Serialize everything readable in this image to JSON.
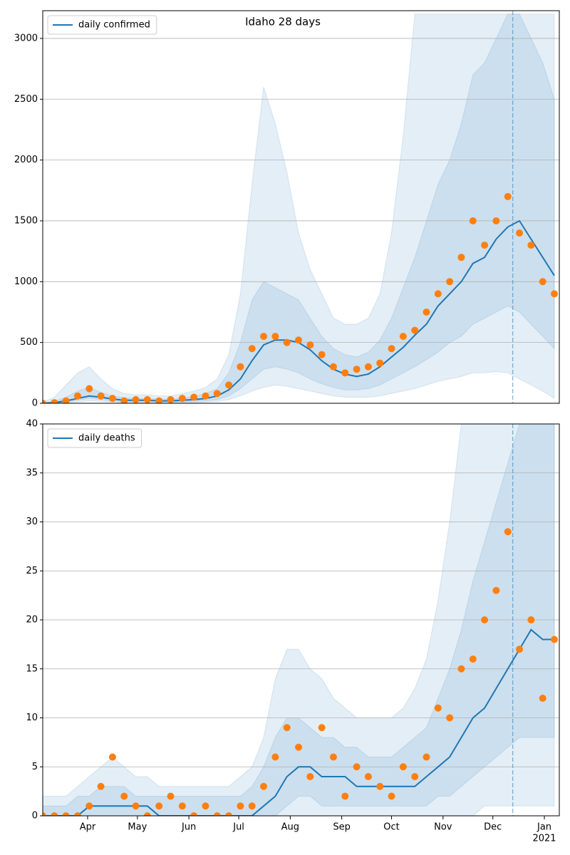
{
  "chart_data": [
    {
      "type": "line",
      "title": "Idaho 28 days",
      "x": [
        0,
        7,
        14,
        21,
        28,
        35,
        42,
        49,
        56,
        63,
        70,
        77,
        84,
        91,
        98,
        105,
        112,
        119,
        126,
        133,
        140,
        147,
        154,
        161,
        168,
        175,
        182,
        189,
        196,
        203,
        210,
        217,
        224,
        231,
        238,
        245,
        252,
        259,
        266,
        273,
        280,
        287,
        294,
        301,
        308
      ],
      "xlim": [
        0,
        311
      ],
      "ylim": [
        0,
        3228
      ],
      "yticks": [
        0,
        500,
        1000,
        1500,
        2000,
        2500,
        3000
      ],
      "grid": true,
      "legend": "upper left",
      "forecast_x": 283,
      "series": [
        {
          "name": "daily confirmed",
          "color": "#1f77b4",
          "values": [
            0,
            5,
            20,
            40,
            60,
            50,
            35,
            25,
            25,
            25,
            20,
            20,
            25,
            30,
            40,
            60,
            110,
            200,
            350,
            480,
            520,
            520,
            500,
            440,
            350,
            280,
            240,
            220,
            240,
            300,
            380,
            460,
            560,
            650,
            800,
            900,
            1000,
            1150,
            1200,
            1350,
            1450,
            1500,
            1350,
            1200,
            1050
          ]
        },
        {
          "type": "scatter",
          "color": "#ff7f0e",
          "values": [
            0,
            5,
            20,
            60,
            120,
            60,
            40,
            20,
            30,
            30,
            20,
            30,
            40,
            50,
            60,
            80,
            150,
            300,
            450,
            550,
            550,
            500,
            520,
            480,
            400,
            300,
            250,
            280,
            300,
            330,
            450,
            550,
            600,
            750,
            900,
            1000,
            1200,
            1500,
            1300,
            1500,
            1700,
            1400,
            1300,
            1000,
            900
          ]
        }
      ],
      "bands": [
        {
          "color": "#1f77b4",
          "lower": [
            0,
            0,
            5,
            10,
            20,
            15,
            10,
            5,
            5,
            5,
            5,
            5,
            5,
            5,
            10,
            15,
            30,
            60,
            100,
            130,
            150,
            140,
            120,
            100,
            80,
            60,
            50,
            50,
            50,
            60,
            80,
            100,
            120,
            150,
            180,
            200,
            220,
            250,
            250,
            260,
            250,
            200,
            150,
            100,
            40
          ],
          "upper": [
            10,
            50,
            150,
            250,
            300,
            200,
            120,
            80,
            70,
            70,
            60,
            60,
            80,
            100,
            130,
            200,
            400,
            900,
            1800,
            2600,
            2300,
            1900,
            1400,
            1100,
            900,
            700,
            650,
            650,
            700,
            900,
            1400,
            2200,
            3200,
            3200,
            3200,
            3200,
            3200,
            3200,
            3200,
            3200,
            3200,
            3200,
            3200,
            3200,
            3200
          ]
        },
        {
          "color": "#1f77b4",
          "lower": [
            0,
            2,
            10,
            25,
            40,
            30,
            20,
            12,
            12,
            12,
            10,
            10,
            12,
            15,
            20,
            30,
            60,
            120,
            200,
            280,
            300,
            280,
            250,
            200,
            160,
            130,
            110,
            110,
            120,
            150,
            200,
            250,
            300,
            360,
            420,
            500,
            550,
            650,
            700,
            750,
            800,
            750,
            650,
            550,
            450
          ],
          "upper": [
            2,
            15,
            50,
            100,
            130,
            90,
            60,
            45,
            40,
            40,
            35,
            35,
            45,
            55,
            80,
            120,
            250,
            500,
            850,
            1000,
            950,
            900,
            850,
            700,
            550,
            450,
            400,
            380,
            420,
            520,
            700,
            950,
            1200,
            1500,
            1800,
            2000,
            2300,
            2700,
            2800,
            3000,
            3200,
            3200,
            3000,
            2800,
            2500
          ]
        }
      ]
    },
    {
      "type": "line",
      "x": [
        0,
        7,
        14,
        21,
        28,
        35,
        42,
        49,
        56,
        63,
        70,
        77,
        84,
        91,
        98,
        105,
        112,
        119,
        126,
        133,
        140,
        147,
        154,
        161,
        168,
        175,
        182,
        189,
        196,
        203,
        210,
        217,
        224,
        231,
        238,
        245,
        252,
        259,
        266,
        273,
        280,
        287,
        294,
        301,
        308
      ],
      "xlim": [
        0,
        311
      ],
      "ylim": [
        0,
        40
      ],
      "yticks": [
        0,
        5,
        10,
        15,
        20,
        25,
        30,
        35,
        40
      ],
      "grid": true,
      "legend": "upper left",
      "xticks": [
        {
          "value": 27,
          "label": "Apr"
        },
        {
          "value": 57,
          "label": "May"
        },
        {
          "value": 88,
          "label": "Jun"
        },
        {
          "value": 118,
          "label": "Jul"
        },
        {
          "value": 149,
          "label": "Aug"
        },
        {
          "value": 180,
          "label": "Sep"
        },
        {
          "value": 210,
          "label": "Oct"
        },
        {
          "value": 241,
          "label": "Nov"
        },
        {
          "value": 271,
          "label": "Dec"
        },
        {
          "value": 302,
          "label": "Jan"
        }
      ],
      "year_label": "2021",
      "forecast_x": 283,
      "series": [
        {
          "name": "daily deaths",
          "color": "#1f77b4",
          "values": [
            0,
            0,
            0,
            0,
            1,
            1,
            1,
            1,
            1,
            1,
            0,
            0,
            0,
            0,
            0,
            0,
            0,
            0,
            0,
            1,
            2,
            4,
            5,
            5,
            4,
            4,
            4,
            3,
            3,
            3,
            3,
            3,
            3,
            4,
            5,
            6,
            8,
            10,
            11,
            13,
            15,
            17,
            19,
            18,
            18
          ]
        },
        {
          "type": "scatter",
          "color": "#ff7f0e",
          "values": [
            0,
            0,
            0,
            0,
            1,
            3,
            6,
            2,
            1,
            0,
            1,
            2,
            1,
            0,
            1,
            0,
            0,
            1,
            1,
            3,
            6,
            9,
            7,
            4,
            9,
            6,
            2,
            5,
            4,
            3,
            2,
            5,
            4,
            6,
            11,
            10,
            15,
            16,
            20,
            23,
            29,
            17,
            20,
            12,
            18
          ]
        }
      ],
      "bands": [
        {
          "color": "#1f77b4",
          "lower": [
            0,
            0,
            0,
            0,
            0,
            0,
            0,
            0,
            0,
            0,
            0,
            0,
            0,
            0,
            0,
            0,
            0,
            0,
            0,
            0,
            0,
            0,
            0,
            0,
            0,
            0,
            0,
            0,
            0,
            0,
            0,
            0,
            0,
            0,
            0,
            0,
            0,
            0,
            1,
            1,
            1,
            1,
            1,
            1,
            1
          ],
          "upper": [
            2,
            2,
            2,
            3,
            4,
            5,
            6,
            5,
            4,
            4,
            3,
            3,
            3,
            3,
            3,
            3,
            3,
            4,
            5,
            8,
            14,
            17,
            17,
            15,
            14,
            12,
            11,
            10,
            10,
            10,
            10,
            11,
            13,
            16,
            22,
            30,
            40,
            40,
            40,
            40,
            40,
            40,
            40,
            40,
            40
          ]
        },
        {
          "color": "#1f77b4",
          "lower": [
            0,
            0,
            0,
            0,
            0,
            0,
            0,
            0,
            0,
            0,
            0,
            0,
            0,
            0,
            0,
            0,
            0,
            0,
            0,
            0,
            0,
            1,
            2,
            2,
            1,
            1,
            1,
            1,
            1,
            1,
            1,
            1,
            1,
            1,
            2,
            2,
            3,
            4,
            5,
            6,
            7,
            8,
            8,
            8,
            8
          ],
          "upper": [
            1,
            1,
            1,
            2,
            2,
            3,
            3,
            3,
            2,
            2,
            2,
            2,
            2,
            2,
            2,
            2,
            2,
            2,
            3,
            5,
            8,
            10,
            10,
            9,
            8,
            8,
            7,
            7,
            6,
            6,
            6,
            7,
            8,
            9,
            12,
            15,
            19,
            24,
            28,
            32,
            36,
            40,
            40,
            40,
            40
          ]
        }
      ]
    }
  ]
}
